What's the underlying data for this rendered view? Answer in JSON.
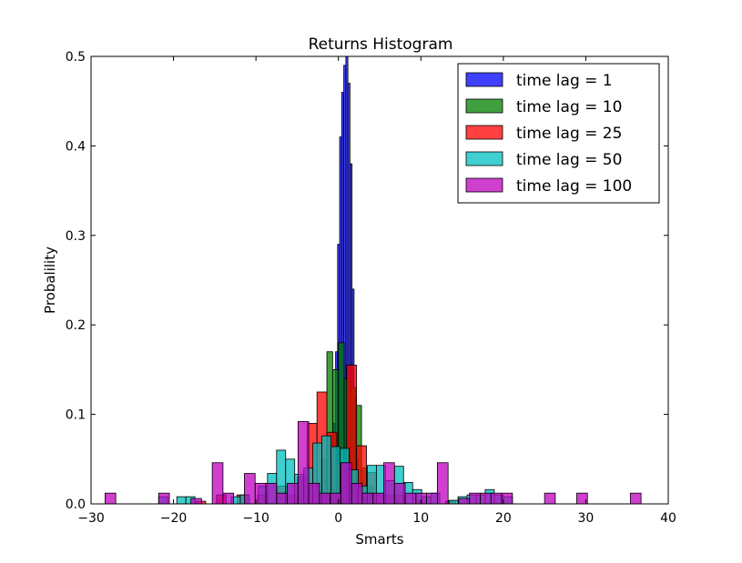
{
  "chart_data": {
    "type": "bar",
    "title": "Returns Histogram",
    "xlabel": "Smarts",
    "ylabel": "Probalility",
    "xlim": [
      -30,
      40
    ],
    "ylim": [
      0,
      0.5
    ],
    "xticks": [
      -30,
      -20,
      -10,
      0,
      10,
      20,
      30,
      40
    ],
    "xtick_labels": [
      "−30",
      "−20",
      "−10",
      "0",
      "10",
      "20",
      "30",
      "40"
    ],
    "yticks": [
      0.0,
      0.1,
      0.2,
      0.3,
      0.4,
      0.5
    ],
    "ytick_labels": [
      "0.0",
      "0.1",
      "0.2",
      "0.3",
      "0.4",
      "0.5"
    ],
    "grid": false,
    "legend_position": "top-right",
    "series": [
      {
        "name": "time lag = 1",
        "color": "#0000ff",
        "bin_width": 0.25,
        "bins": [
          [
            -1.1,
            0.02
          ],
          [
            -0.85,
            0.05
          ],
          [
            -0.6,
            0.09
          ],
          [
            -0.35,
            0.17
          ],
          [
            -0.1,
            0.29
          ],
          [
            0.15,
            0.41
          ],
          [
            0.4,
            0.46
          ],
          [
            0.65,
            0.49
          ],
          [
            0.9,
            0.5
          ],
          [
            1.15,
            0.47
          ],
          [
            1.4,
            0.38
          ],
          [
            1.65,
            0.24
          ],
          [
            1.9,
            0.12
          ],
          [
            2.15,
            0.05
          ],
          [
            2.4,
            0.02
          ]
        ]
      },
      {
        "name": "time lag = 10",
        "color": "#008000",
        "bin_width": 0.7,
        "bins": [
          [
            -2.1,
            0.05
          ],
          [
            -1.4,
            0.17
          ],
          [
            -0.7,
            0.15
          ],
          [
            0.0,
            0.18
          ],
          [
            0.7,
            0.14
          ],
          [
            1.4,
            0.13
          ],
          [
            2.1,
            0.11
          ],
          [
            2.8,
            0.04
          ],
          [
            3.5,
            0.02
          ]
        ]
      },
      {
        "name": "time lag = 25",
        "color": "#ff0000",
        "bin_width": 1.2,
        "bins": [
          [
            -17.3,
            0.003
          ],
          [
            -14.8,
            0.01
          ],
          [
            -12.3,
            0.01
          ],
          [
            -9.8,
            0.01
          ],
          [
            -7.4,
            0.02
          ],
          [
            -6.2,
            0.01
          ],
          [
            -5.0,
            0.03
          ],
          [
            -3.8,
            0.09
          ],
          [
            -2.6,
            0.125
          ],
          [
            -1.4,
            0.08
          ],
          [
            -0.2,
            0.045
          ],
          [
            1.0,
            0.155
          ],
          [
            2.2,
            0.065
          ],
          [
            3.4,
            0.035
          ],
          [
            4.6,
            0.01
          ],
          [
            5.8,
            0.01
          ],
          [
            7.0,
            0.01
          ],
          [
            9.4,
            0.003
          ],
          [
            13.0,
            0.003
          ]
        ]
      },
      {
        "name": "time lag = 50",
        "color": "#00bfbf",
        "bin_width": 1.1,
        "bins": [
          [
            -21.8,
            0.008
          ],
          [
            -19.6,
            0.008
          ],
          [
            -18.5,
            0.008
          ],
          [
            -13.0,
            0.008
          ],
          [
            -11.9,
            0.01
          ],
          [
            -9.7,
            0.02
          ],
          [
            -8.6,
            0.034
          ],
          [
            -7.5,
            0.06
          ],
          [
            -6.4,
            0.05
          ],
          [
            -5.3,
            0.033
          ],
          [
            -4.2,
            0.04
          ],
          [
            -3.1,
            0.068
          ],
          [
            -2.0,
            0.076
          ],
          [
            -0.9,
            0.064
          ],
          [
            0.2,
            0.062
          ],
          [
            1.3,
            0.038
          ],
          [
            2.4,
            0.02
          ],
          [
            3.5,
            0.043
          ],
          [
            4.6,
            0.043
          ],
          [
            5.7,
            0.026
          ],
          [
            6.8,
            0.042
          ],
          [
            7.9,
            0.024
          ],
          [
            9.0,
            0.016
          ],
          [
            10.1,
            0.008
          ],
          [
            11.2,
            0.012
          ],
          [
            13.4,
            0.004
          ],
          [
            14.5,
            0.008
          ],
          [
            15.6,
            0.01
          ],
          [
            16.7,
            0.01
          ],
          [
            17.8,
            0.016
          ],
          [
            18.9,
            0.01
          ],
          [
            20.0,
            0.008
          ]
        ]
      },
      {
        "name": "time lag = 100",
        "color": "#bf00bf",
        "bin_width": 1.3,
        "bins": [
          [
            -28.3,
            0.012
          ],
          [
            -21.8,
            0.012
          ],
          [
            -17.9,
            0.006
          ],
          [
            -15.3,
            0.046
          ],
          [
            -14.0,
            0.012
          ],
          [
            -11.4,
            0.034
          ],
          [
            -10.1,
            0.023
          ],
          [
            -8.8,
            0.023
          ],
          [
            -7.5,
            0.012
          ],
          [
            -6.2,
            0.023
          ],
          [
            -4.9,
            0.092
          ],
          [
            -3.6,
            0.023
          ],
          [
            -2.3,
            0.012
          ],
          [
            -1.0,
            0.012
          ],
          [
            0.3,
            0.046
          ],
          [
            1.6,
            0.023
          ],
          [
            2.9,
            0.012
          ],
          [
            4.2,
            0.012
          ],
          [
            5.5,
            0.046
          ],
          [
            6.8,
            0.023
          ],
          [
            8.1,
            0.012
          ],
          [
            9.4,
            0.012
          ],
          [
            10.7,
            0.012
          ],
          [
            12.0,
            0.046
          ],
          [
            14.6,
            0.006
          ],
          [
            15.9,
            0.012
          ],
          [
            17.2,
            0.012
          ],
          [
            18.5,
            0.012
          ],
          [
            19.8,
            0.012
          ],
          [
            25.0,
            0.012
          ],
          [
            28.9,
            0.012
          ],
          [
            35.4,
            0.012
          ]
        ]
      }
    ]
  }
}
